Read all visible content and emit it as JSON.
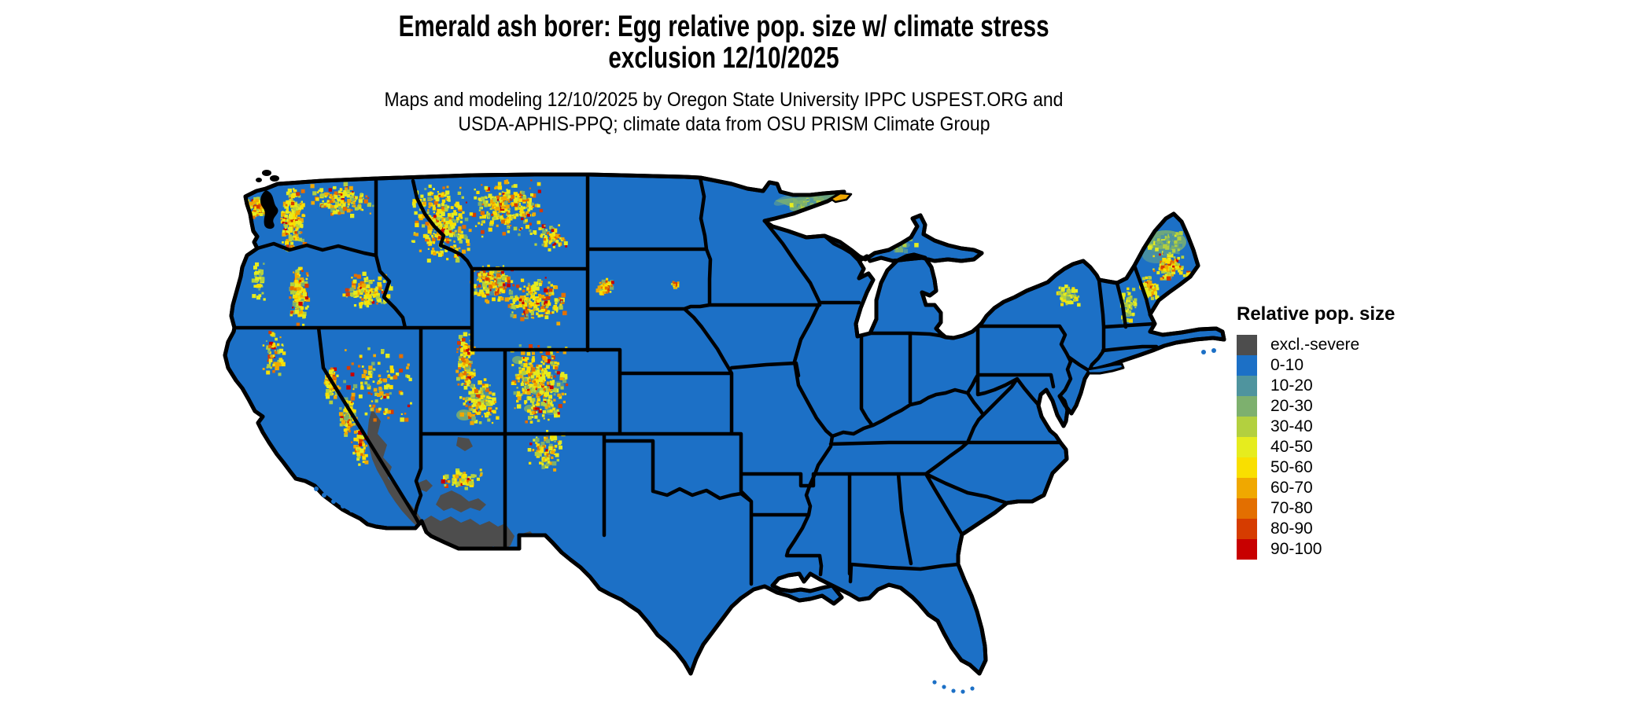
{
  "title": {
    "line1": "Emerald ash borer: Egg relative pop. size w/ climate stress",
    "line2": "exclusion 12/10/2025"
  },
  "subtitle": {
    "line1": "Maps and modeling 12/10/2025 by Oregon State University IPPC USPEST.ORG and",
    "line2": "USDA-APHIS-PPQ; climate data from OSU PRISM Climate Group"
  },
  "legend": {
    "title": "Relative pop. size",
    "entries": [
      {
        "label": "excl.-severe",
        "color": "#4d4d4d"
      },
      {
        "label": "0-10",
        "color": "#1c70c6"
      },
      {
        "label": "10-20",
        "color": "#4f949e"
      },
      {
        "label": "20-30",
        "color": "#7db06e"
      },
      {
        "label": "30-40",
        "color": "#b3d03f"
      },
      {
        "label": "40-50",
        "color": "#e6ec1e"
      },
      {
        "label": "50-60",
        "color": "#f9df00"
      },
      {
        "label": "60-70",
        "color": "#f0a800"
      },
      {
        "label": "70-80",
        "color": "#e36f00"
      },
      {
        "label": "80-90",
        "color": "#d63c00"
      },
      {
        "label": "90-100",
        "color": "#c80000"
      }
    ]
  },
  "map": {
    "colors": {
      "background": "#ffffff",
      "base_0_10": "#1c70c6",
      "excluded": "#4d4d4d",
      "state_border": "#000000",
      "teal_10_20": "#4f949e",
      "green_20_30": "#7db06e"
    },
    "regions": {
      "conus_base": "0-10 (blue) over most of the continental United States",
      "exclusion_zone": "excl.-severe dark gray over SE California, southern Nevada and SW Arizona deserts",
      "mountain_west": "yellow/orange/red speckled higher values along Cascades, Sierra Nevada, Northern Rockies, Wasatch, Colorado Rockies",
      "great_lakes_north": "teal/green patches on Lake Superior north shore, upper Michigan; orange Isle Royale",
      "northeast": "yellow/green speckles over Adirondacks, White Mountains and northern Maine",
      "islands": "blue dots for Channel Islands, Florida Keys, Cape Cod islands"
    }
  }
}
